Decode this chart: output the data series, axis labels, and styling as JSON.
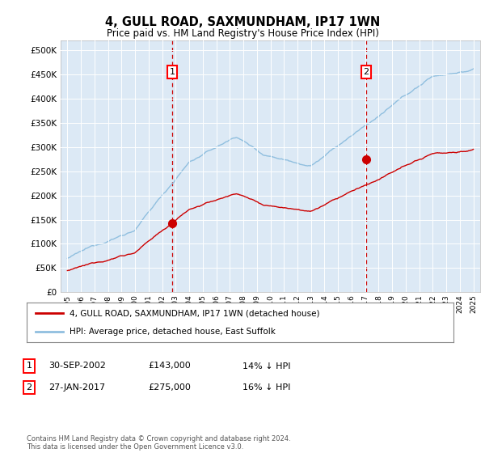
{
  "title": "4, GULL ROAD, SAXMUNDHAM, IP17 1WN",
  "subtitle": "Price paid vs. HM Land Registry's House Price Index (HPI)",
  "bg_color": "#dce9f5",
  "hpi_color": "#90bfdf",
  "price_color": "#cc0000",
  "dashed_line_color": "#cc0000",
  "yticks": [
    0,
    50000,
    100000,
    150000,
    200000,
    250000,
    300000,
    350000,
    400000,
    450000,
    500000
  ],
  "ytick_labels": [
    "£0",
    "£50K",
    "£100K",
    "£150K",
    "£200K",
    "£250K",
    "£300K",
    "£350K",
    "£400K",
    "£450K",
    "£500K"
  ],
  "sale1_year": 2002.75,
  "sale1_price": 143000,
  "sale2_year": 2017.08,
  "sale2_price": 275000,
  "legend_line1": "4, GULL ROAD, SAXMUNDHAM, IP17 1WN (detached house)",
  "legend_line2": "HPI: Average price, detached house, East Suffolk",
  "footer": "Contains HM Land Registry data © Crown copyright and database right 2024.\nThis data is licensed under the Open Government Licence v3.0.",
  "xmin": 1994.5,
  "xmax": 2025.5,
  "ymin": 0,
  "ymax": 520000
}
